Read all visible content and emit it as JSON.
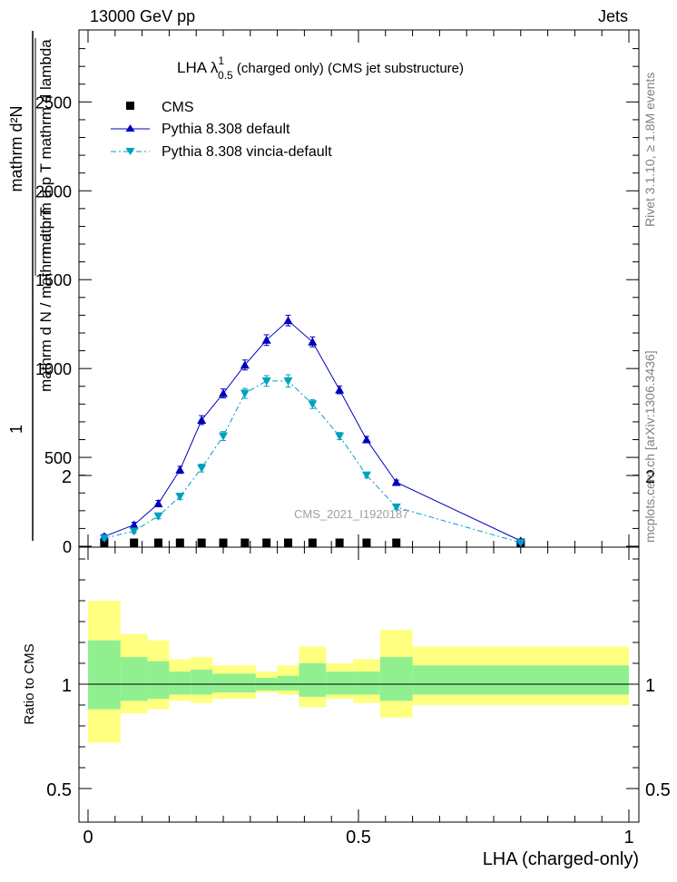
{
  "header": {
    "left": "13000 GeV pp",
    "right": "Jets"
  },
  "side_labels": {
    "rivet": "Rivet 3.1.10, ≥ 1.8M events",
    "mcplots": "mcplots.cern.ch [arXiv:1306.3436]"
  },
  "watermark": "CMS_2021_I1920187",
  "chart_data": [
    {
      "type": "line",
      "title_main": "LHA λ",
      "title_sup": "1",
      "title_sub": "0.5",
      "title_rest": " (charged only) (CMS jet substructure)",
      "ylabel": {
        "prefix": "1",
        "top_num": "mathrm d²N",
        "top_den": "mathrm d p  T  mathrm d lambda",
        "bottom": "mathrm d N / mathrm d p  T"
      },
      "xlim": [
        0,
        1
      ],
      "ylim": [
        0,
        2900
      ],
      "yticks": [
        0,
        500,
        1000,
        1500,
        2000,
        2500
      ],
      "ytick_labels": [
        "0",
        "500",
        "1000",
        "1500",
        "2000",
        "2500"
      ],
      "legend_position": "top-left",
      "series": [
        {
          "name": "CMS",
          "color": "#000000",
          "marker": "square",
          "x": [
            0.03,
            0.085,
            0.13,
            0.17,
            0.21,
            0.25,
            0.29,
            0.33,
            0.37,
            0.415,
            0.465,
            0.515,
            0.57,
            0.8
          ],
          "y": [
            5,
            5,
            5,
            5,
            5,
            5,
            5,
            5,
            5,
            5,
            5,
            5,
            5,
            5
          ]
        },
        {
          "name": "Pythia 8.308 default",
          "color": "#0000c0",
          "marker": "triangle-up",
          "x": [
            0.03,
            0.085,
            0.13,
            0.17,
            0.21,
            0.25,
            0.29,
            0.33,
            0.37,
            0.415,
            0.465,
            0.515,
            0.57,
            0.8
          ],
          "y": [
            55,
            120,
            240,
            430,
            710,
            860,
            1020,
            1160,
            1270,
            1150,
            880,
            600,
            360,
            30
          ],
          "err": [
            12,
            15,
            18,
            20,
            25,
            25,
            28,
            30,
            30,
            28,
            22,
            18,
            12,
            8
          ]
        },
        {
          "name": "Pythia 8.308 vincia-default",
          "color": "#00a0c0",
          "marker": "triangle-down",
          "x": [
            0.03,
            0.085,
            0.13,
            0.17,
            0.21,
            0.25,
            0.29,
            0.33,
            0.37,
            0.415,
            0.465,
            0.515,
            0.57,
            0.8
          ],
          "y": [
            45,
            85,
            170,
            280,
            440,
            620,
            860,
            930,
            930,
            800,
            620,
            400,
            220,
            20
          ],
          "err": [
            10,
            12,
            15,
            18,
            22,
            25,
            28,
            30,
            35,
            25,
            20,
            15,
            12,
            6
          ]
        }
      ]
    },
    {
      "type": "area",
      "ylabel": "Ratio to CMS",
      "xlabel": "LHA (charged-only)",
      "xlim": [
        0,
        1
      ],
      "ylim": [
        0.3,
        2.3
      ],
      "yticks": [
        0.5,
        1,
        2
      ],
      "ytick_labels": [
        "0.5",
        "1",
        "2"
      ],
      "xticks": [
        0,
        0.5,
        1
      ],
      "xtick_labels": [
        "0",
        "0.5",
        "1"
      ],
      "bands": {
        "bins": [
          [
            0.0,
            0.06
          ],
          [
            0.06,
            0.11
          ],
          [
            0.11,
            0.15
          ],
          [
            0.15,
            0.19
          ],
          [
            0.19,
            0.23
          ],
          [
            0.23,
            0.31
          ],
          [
            0.31,
            0.35
          ],
          [
            0.35,
            0.39
          ],
          [
            0.39,
            0.44
          ],
          [
            0.44,
            0.49
          ],
          [
            0.49,
            0.54
          ],
          [
            0.54,
            0.6
          ],
          [
            0.6,
            1.0
          ]
        ],
        "outer_lo": [
          0.72,
          0.86,
          0.88,
          0.92,
          0.91,
          0.93,
          0.96,
          0.95,
          0.89,
          0.93,
          0.91,
          0.84,
          0.9
        ],
        "outer_hi": [
          1.4,
          1.24,
          1.21,
          1.12,
          1.13,
          1.09,
          1.06,
          1.09,
          1.18,
          1.1,
          1.12,
          1.26,
          1.18
        ],
        "inner_lo": [
          0.88,
          0.92,
          0.93,
          0.95,
          0.95,
          0.96,
          0.97,
          0.97,
          0.94,
          0.95,
          0.95,
          0.92,
          0.95
        ],
        "inner_hi": [
          1.21,
          1.13,
          1.11,
          1.06,
          1.07,
          1.05,
          1.03,
          1.04,
          1.1,
          1.06,
          1.06,
          1.13,
          1.09
        ],
        "outer_color": "#ffff80",
        "inner_color": "#90f090"
      },
      "reference": 1
    }
  ]
}
